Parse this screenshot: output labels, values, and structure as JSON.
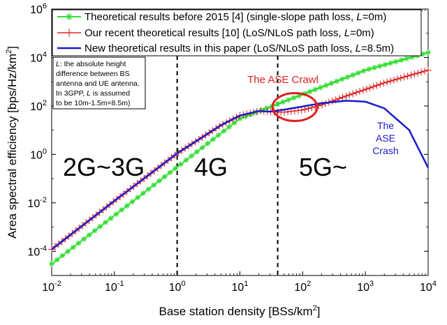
{
  "chart_data": {
    "type": "line",
    "xlabel": "Base station density [BSs/km",
    "xlabel_sup": "2",
    "xlabel_end": "]",
    "ylabel": "Area spectral efficiency [bps/Hz/km",
    "ylabel_sup": "2",
    "ylabel_end": "]",
    "x_scale": "log",
    "y_scale": "log",
    "xlim": [
      0.01,
      10000
    ],
    "ylim": [
      1e-05,
      1000000
    ],
    "x_ticks": [
      {
        "value": 0.01,
        "base": "10",
        "exp": "-2"
      },
      {
        "value": 0.1,
        "base": "10",
        "exp": "-1"
      },
      {
        "value": 1,
        "base": "10",
        "exp": "0"
      },
      {
        "value": 10,
        "base": "10",
        "exp": "1"
      },
      {
        "value": 100,
        "base": "10",
        "exp": "2"
      },
      {
        "value": 1000,
        "base": "10",
        "exp": "3"
      },
      {
        "value": 10000,
        "base": "10",
        "exp": "4"
      }
    ],
    "y_ticks": [
      {
        "value": 0.0001,
        "base": "10",
        "exp": "-4"
      },
      {
        "value": 0.01,
        "base": "10",
        "exp": "-2"
      },
      {
        "value": 1,
        "base": "10",
        "exp": "0"
      },
      {
        "value": 100,
        "base": "10",
        "exp": "2"
      },
      {
        "value": 10000,
        "base": "10",
        "exp": "4"
      },
      {
        "value": 1000000,
        "base": "10",
        "exp": "6"
      }
    ],
    "grid": false,
    "legend_position": "top-left",
    "series": [
      {
        "name_pre": "Theoretical results before 2015 [4] (single-slope path loss, ",
        "name_var": "L",
        "name_post": "=0m)",
        "color": "#33dd33",
        "marker": "asterisk",
        "x": [
          0.01,
          0.1,
          1,
          10,
          100,
          1000,
          10000
        ],
        "y": [
          3e-05,
          0.003,
          0.3,
          30,
          300,
          3000,
          16000
        ]
      },
      {
        "name_pre": "Our recent theoretical results [10] (LoS/NLoS path loss, ",
        "name_var": "L",
        "name_post": "=0m)",
        "color": "#dd2222",
        "marker": "plus",
        "x": [
          0.01,
          0.1,
          1,
          5,
          10,
          20,
          30,
          50,
          100,
          200,
          500,
          1000,
          2000,
          5000,
          10000
        ],
        "y": [
          0.00012,
          0.012,
          1.1,
          16,
          40,
          62,
          58,
          55,
          68,
          110,
          260,
          480,
          900,
          1800,
          3000
        ]
      },
      {
        "name_pre": "New theoretical results in this paper (LoS/NLoS path loss, ",
        "name_var": "L",
        "name_post": "=8.5m)",
        "color": "#1a1acc",
        "marker": "none",
        "x": [
          0.01,
          0.1,
          1,
          5,
          10,
          20,
          30,
          50,
          100,
          200,
          500,
          1000,
          2000,
          5000,
          10000
        ],
        "y": [
          0.00012,
          0.012,
          1.1,
          16,
          40,
          62,
          58,
          70,
          95,
          130,
          165,
          150,
          80,
          10,
          0.28
        ]
      }
    ],
    "vertical_lines": [
      1,
      40
    ],
    "annotations": {
      "note_lines": [
        {
          "var": "L",
          "text": ": the absolute height"
        },
        {
          "var": "",
          "text": "difference between BS"
        },
        {
          "var": "",
          "text": "antenna and UE antenna."
        },
        {
          "var": "",
          "text": "In 3GPP, "
        },
        {
          "var": "",
          "text": "to be 10m-1.5m=8.5m)"
        }
      ],
      "note_line4_var": "L",
      "note_line4_post": " is assumed",
      "crawl_label": "The ASE Crawl",
      "crawl_center": {
        "x": 75,
        "y": 90
      },
      "crash_label": [
        "The",
        "ASE",
        "Crash"
      ],
      "regions": [
        "2G~3G",
        "4G",
        "5G~"
      ]
    }
  }
}
